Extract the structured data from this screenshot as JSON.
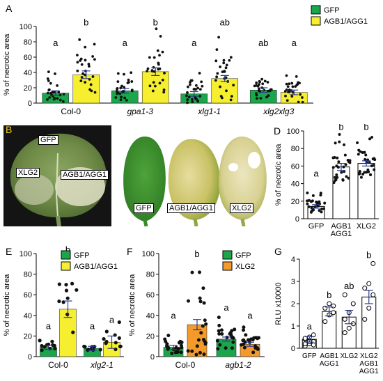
{
  "panels": {
    "A": "A",
    "B": "B",
    "C": "C",
    "D": "D",
    "E": "E",
    "F": "F",
    "G": "G"
  },
  "colors": {
    "gfp": "#1aa64a",
    "agb": "#f6ef30",
    "xlg2": "#f39a2b",
    "white_bar": "#ffffff",
    "err": "#2a3a8f",
    "dot": "#111111"
  },
  "photos": {
    "B": {
      "labels": [
        "GFP",
        "XLG2",
        "AGB1/AGG1"
      ]
    },
    "C": {
      "labels": [
        "GFP",
        "AGB1/AGG1",
        "XLG2"
      ]
    }
  },
  "chart_data": [
    {
      "id": "A",
      "type": "bar",
      "ylabel": "% of necrotic area",
      "ylim": [
        0,
        100
      ],
      "yticks": [
        0,
        20,
        40,
        60,
        80,
        100
      ],
      "legend": {
        "placement": "top-right",
        "entries": [
          "GFP",
          "AGB1/AGG1"
        ]
      },
      "groups": [
        {
          "label": "Col-0",
          "italic": false
        },
        {
          "label": "gpa1-3",
          "italic": true
        },
        {
          "label": "xlg1-1",
          "italic": true
        },
        {
          "label": "xlg2xlg3",
          "italic": true
        }
      ],
      "series": [
        {
          "name": "GFP",
          "values": [
            13,
            16,
            12,
            17
          ],
          "errors": [
            3,
            3,
            3,
            3
          ],
          "letters": [
            "a",
            "a",
            "a",
            "ab"
          ]
        },
        {
          "name": "AGB1/AGG1",
          "values": [
            37,
            41,
            32,
            14
          ],
          "errors": [
            5,
            5,
            4,
            3
          ],
          "letters": [
            "b",
            "b",
            "ab",
            "a"
          ]
        }
      ]
    },
    {
      "id": "D",
      "type": "bar",
      "ylabel": "% of necrotic area",
      "ylim": [
        0,
        100
      ],
      "yticks": [
        0,
        20,
        40,
        60,
        80,
        100
      ],
      "categories": [
        "GFP",
        "AGB1 AGG1",
        "XLG2"
      ],
      "category_lines": [
        [
          "GFP"
        ],
        [
          "AGB1",
          "AGG1"
        ],
        [
          "XLG2"
        ]
      ],
      "values": [
        14,
        59,
        63
      ],
      "errors": [
        2,
        4,
        3
      ],
      "letters": [
        "a",
        "b",
        "b"
      ]
    },
    {
      "id": "E",
      "type": "bar",
      "ylabel": "% of necrotic area",
      "ylim": [
        0,
        100
      ],
      "yticks": [
        0,
        20,
        40,
        60,
        80,
        100
      ],
      "legend": {
        "placement": "top-right",
        "entries": [
          "GFP",
          "AGB1/AGG1"
        ]
      },
      "groups": [
        {
          "label": "Col-0",
          "italic": false
        },
        {
          "label": "xlg2-1",
          "italic": true
        }
      ],
      "series": [
        {
          "name": "GFP",
          "values": [
            9,
            8
          ],
          "errors": [
            2,
            2
          ],
          "letters": [
            "a",
            "a"
          ]
        },
        {
          "name": "AGB1/AGG1",
          "values": [
            46,
            14
          ],
          "errors": [
            8,
            6
          ],
          "letters": [
            "b",
            "a"
          ]
        }
      ]
    },
    {
      "id": "F",
      "type": "bar",
      "ylabel": "% of necrotic area",
      "ylim": [
        0,
        100
      ],
      "yticks": [
        0,
        20,
        40,
        60,
        80,
        100
      ],
      "legend": {
        "placement": "top-right",
        "entries": [
          "GFP",
          "XLG2"
        ]
      },
      "groups": [
        {
          "label": "Col-0",
          "italic": false
        },
        {
          "label": "agb1-2",
          "italic": true
        }
      ],
      "series": [
        {
          "name": "GFP",
          "values": [
            9,
            17
          ],
          "errors": [
            2,
            2
          ],
          "letters": [
            "a",
            "a"
          ]
        },
        {
          "name": "XLG2",
          "values": [
            31,
            12
          ],
          "errors": [
            5,
            2
          ],
          "letters": [
            "b",
            "a"
          ]
        }
      ]
    },
    {
      "id": "G",
      "type": "bar",
      "ylabel": "RLU x10000",
      "ylim": [
        0,
        4
      ],
      "yticks": [
        0,
        1,
        2,
        3,
        4
      ],
      "categories": [
        "GFP",
        "AGB1 AGG1",
        "XLG2",
        "XLG2 AGB1 AGG1"
      ],
      "category_lines": [
        [
          "GFP"
        ],
        [
          "AGB1",
          "AGG1"
        ],
        [
          "XLG2"
        ],
        [
          "XLG2",
          "AGB1",
          "AGG1"
        ]
      ],
      "values": [
        0.4,
        1.65,
        1.4,
        2.3
      ],
      "errors": [
        0.12,
        0.2,
        0.3,
        0.3
      ],
      "letters": [
        "a",
        "b",
        "ab",
        "b"
      ],
      "points": [
        [
          0.1,
          0.2,
          0.3,
          0.4,
          0.5,
          0.6,
          0.2,
          0.3,
          0.15,
          0.45
        ],
        [
          1.2,
          1.5,
          1.6,
          1.8,
          2.0,
          1.9
        ],
        [
          0.7,
          0.9,
          1.1,
          1.3,
          1.6,
          2.0,
          2.4
        ],
        [
          1.3,
          1.8,
          2.4,
          2.7,
          2.9,
          3.8
        ]
      ]
    }
  ]
}
